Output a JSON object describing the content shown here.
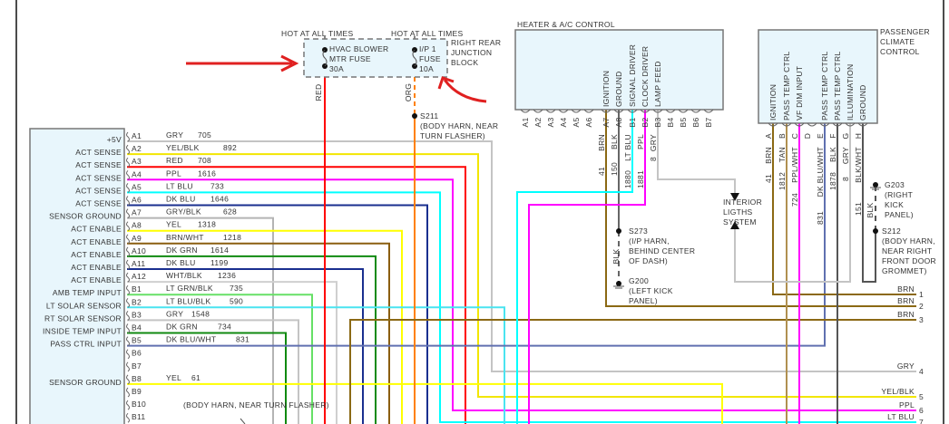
{
  "left_module": {
    "rows": [
      {
        "pin": "A1",
        "func": "+5V",
        "color": "GRY",
        "circuit": "705",
        "hex": "#c4c4c4"
      },
      {
        "pin": "A2",
        "func": "ACT SENSE",
        "color": "YEL/BLK",
        "circuit": "892",
        "hex": "#f2e600"
      },
      {
        "pin": "A3",
        "func": "ACT SENSE",
        "color": "RED",
        "circuit": "708",
        "hex": "#ff0000"
      },
      {
        "pin": "A4",
        "func": "ACT SENSE",
        "color": "PPL",
        "circuit": "1616",
        "hex": "#ff00ff"
      },
      {
        "pin": "A5",
        "func": "ACT SENSE",
        "color": "LT BLU",
        "circuit": "733",
        "hex": "#00ffff"
      },
      {
        "pin": "A6",
        "func": "ACT SENSE",
        "color": "DK BLU",
        "circuit": "1646",
        "hex": "#1a2f8f"
      },
      {
        "pin": "A7",
        "func": "SENSOR GROUND",
        "color": "GRY/BLK",
        "circuit": "628",
        "hex": "#b4b4b4"
      },
      {
        "pin": "A8",
        "func": "ACT ENABLE",
        "color": "YEL",
        "circuit": "1318",
        "hex": "#ffff00"
      },
      {
        "pin": "A9",
        "func": "ACT ENABLE",
        "color": "BRN/WHT",
        "circuit": "1218",
        "hex": "#8b5e10"
      },
      {
        "pin": "A10",
        "func": "ACT ENABLE",
        "color": "DK GRN",
        "circuit": "1614",
        "hex": "#108a10"
      },
      {
        "pin": "A11",
        "func": "ACT ENABLE",
        "color": "DK BLU",
        "circuit": "1199",
        "hex": "#1a2f8f"
      },
      {
        "pin": "A12",
        "func": "ACT ENABLE",
        "color": "WHT/BLK",
        "circuit": "1236",
        "hex": "#cfcfcf"
      },
      {
        "pin": "B1",
        "func": "AMB TEMP INPUT",
        "color": "LT GRN/BLK",
        "circuit": "735",
        "hex": "#66e066"
      },
      {
        "pin": "B2",
        "func": "LT SOLAR SENSOR",
        "color": "LT BLU/BLK",
        "circuit": "590",
        "hex": "#4ae4f0"
      },
      {
        "pin": "B3",
        "func": "RT SOLAR SENSOR",
        "color": "GRY",
        "circuit": "1548",
        "hex": "#c4c4c4"
      },
      {
        "pin": "B4",
        "func": "INSIDE TEMP INPUT",
        "color": "DK GRN",
        "circuit": "734",
        "hex": "#108a10"
      },
      {
        "pin": "B5",
        "func": "PASS CTRL INPUT",
        "color": "DK BLU/WHT",
        "circuit": "831",
        "hex": "#6070b0"
      },
      {
        "pin": "B6",
        "func": "",
        "color": "",
        "circuit": "",
        "hex": ""
      },
      {
        "pin": "B7",
        "func": "",
        "color": "",
        "circuit": "",
        "hex": ""
      },
      {
        "pin": "B8",
        "func": "SENSOR GROUND",
        "color": "YEL",
        "circuit": "61",
        "hex": "#ffff00"
      },
      {
        "pin": "B9",
        "func": "",
        "color": "",
        "circuit": "",
        "hex": ""
      },
      {
        "pin": "B10",
        "func": "",
        "color": "",
        "circuit": "",
        "hex": ""
      },
      {
        "pin": "B11",
        "func": "",
        "color": "",
        "circuit": "",
        "hex": ""
      }
    ],
    "splice_note": "(BODY HARN, NEAR TURN FLASHER)"
  },
  "fuse_block": {
    "hot1": "HOT AT ALL TIMES",
    "hot2": "HOT AT ALL TIMES",
    "fuse1": [
      "HVAC BLOWER",
      "MTR FUSE",
      "30A"
    ],
    "fuse2": [
      "I/P 1",
      "FUSE",
      "10A"
    ],
    "label": [
      "RIGHT REAR",
      "JUNCTION",
      "BLOCK"
    ],
    "wire1": "RED",
    "wire2": "ORG",
    "splice": [
      "S211",
      "(BODY HARN, NEAR",
      "TURN FLASHER)"
    ]
  },
  "heater_control": {
    "title": "HEATER & A/C CONTROL",
    "pins": [
      "A1",
      "A2",
      "A3",
      "A4",
      "A5",
      "A6",
      "A7",
      "A8",
      "B1",
      "B2",
      "B3",
      "B4",
      "B5",
      "B6",
      "B7"
    ],
    "functions": [
      {
        "pin": "A7",
        "func": "IGNITION",
        "color": "BRN",
        "circuit": "41"
      },
      {
        "pin": "A8",
        "func": "GROUND",
        "color": "BLK",
        "circuit": "150"
      },
      {
        "pin": "B1",
        "func": "SIGNAL DRIVER",
        "color": "LT BLU",
        "circuit": "1880"
      },
      {
        "pin": "B2",
        "func": "CLOCK DRIVER",
        "color": "PPL",
        "circuit": "1881"
      },
      {
        "pin": "B3",
        "func": "LAMP FEED",
        "color": "GRY",
        "circuit": "8"
      }
    ],
    "splice": [
      "S273",
      "(I/P HARN,",
      "BEHIND CENTER",
      "OF DASH)"
    ],
    "ground_wire": "BLK",
    "ground": [
      "G200",
      "(LEFT KICK",
      "PANEL)"
    ]
  },
  "interior_lights": [
    "INTERIOR",
    "LIGTHS",
    "SYSTEM"
  ],
  "passenger_control": {
    "title": [
      "PASSENGER",
      "CLIMATE",
      "CONTROL"
    ],
    "pins": [
      {
        "pin": "A",
        "func": "IGNITION",
        "color": "BRN",
        "circuit": "41"
      },
      {
        "pin": "B",
        "func": "PASS TEMP CTRL",
        "color": "TAN",
        "circuit": "1812"
      },
      {
        "pin": "C",
        "func": "VF DIM INPUT",
        "color": "PPL/WHT",
        "circuit": "724"
      },
      {
        "pin": "D",
        "func": "",
        "color": "",
        "circuit": ""
      },
      {
        "pin": "E",
        "func": "PASS TEMP CTRL",
        "color": "DK BLU/WHT",
        "circuit": "831"
      },
      {
        "pin": "F",
        "func": "PASS TEMP CTRL",
        "color": "BLK",
        "circuit": "1878"
      },
      {
        "pin": "G",
        "func": "ILLUMINATION",
        "color": "GRY",
        "circuit": "8"
      },
      {
        "pin": "H",
        "func": "GROUND",
        "color": "BLK/WHT",
        "circuit": "151"
      }
    ],
    "ground": [
      "G203",
      "(RIGHT",
      "KICK",
      "PANEL)"
    ],
    "ground_wire": "BLK",
    "splice": [
      "S212",
      "(BODY HARN,",
      "NEAR RIGHT",
      "FRONT DOOR",
      "GROMMET)"
    ]
  },
  "continuations": [
    {
      "color": "BRN",
      "num": "1"
    },
    {
      "color": "BRN",
      "num": "2"
    },
    {
      "color": "BRN",
      "num": "3"
    },
    {
      "color": "GRY",
      "num": "4"
    },
    {
      "color": "YEL/BLK",
      "num": "5"
    },
    {
      "color": "PPL",
      "num": "6"
    },
    {
      "color": "LT BLU",
      "num": "7"
    }
  ],
  "annotation_color": "#e02020"
}
